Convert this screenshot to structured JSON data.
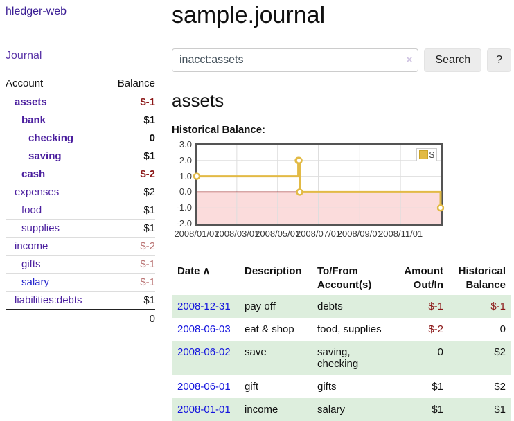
{
  "app": {
    "brand": "hledger-web"
  },
  "sidebar": {
    "journal_link": "Journal",
    "accounts": {
      "header": {
        "account": "Account",
        "balance": "Balance"
      },
      "rows": [
        {
          "name": "assets",
          "balance": "$-1"
        },
        {
          "name": "bank",
          "balance": "$1"
        },
        {
          "name": "checking",
          "balance": "0"
        },
        {
          "name": "saving",
          "balance": "$1"
        },
        {
          "name": "cash",
          "balance": "$-2"
        },
        {
          "name": "expenses",
          "balance": "$2"
        },
        {
          "name": "food",
          "balance": "$1"
        },
        {
          "name": "supplies",
          "balance": "$1"
        },
        {
          "name": "income",
          "balance": "$-2"
        },
        {
          "name": "gifts",
          "balance": "$-1"
        },
        {
          "name": "salary",
          "balance": "$-1"
        },
        {
          "name": "liabilities:debts",
          "balance": "$1"
        }
      ],
      "total": "0"
    }
  },
  "main": {
    "title": "sample.journal",
    "search": {
      "value": "inacct:assets",
      "clear_icon": "×",
      "search_button": "Search",
      "help_button": "?"
    },
    "heading": "assets",
    "chart_label": "Historical Balance:"
  },
  "chart_data": {
    "type": "line",
    "step": true,
    "title": "Historical Balance:",
    "series": [
      {
        "name": "$",
        "points": [
          {
            "date": "2008-01-01",
            "value": 1
          },
          {
            "date": "2008-06-01",
            "value": 2
          },
          {
            "date": "2008-06-02",
            "value": 2
          },
          {
            "date": "2008-06-03",
            "value": 0
          },
          {
            "date": "2008-12-31",
            "value": -1
          }
        ]
      }
    ],
    "ylim": [
      -2,
      3
    ],
    "yticks": [
      {
        "label": "3.0",
        "value": 3
      },
      {
        "label": "2.0",
        "value": 2
      },
      {
        "label": "1.0",
        "value": 1
      },
      {
        "label": "0.0",
        "value": 0
      },
      {
        "label": "-1.0",
        "value": -1
      },
      {
        "label": "-2.0",
        "value": -2
      }
    ],
    "xticks": [
      {
        "label": "2008/01/01",
        "date": "2008-01-01"
      },
      {
        "label": "2008/03/01",
        "date": "2008-03-01"
      },
      {
        "label": "2008/05/01",
        "date": "2008-05-01"
      },
      {
        "label": "2008/07/01",
        "date": "2008-07-01"
      },
      {
        "label": "2008/09/01",
        "date": "2008-09-01"
      },
      {
        "label": "2008/11/01",
        "date": "2008-11-01"
      }
    ],
    "legend": [
      {
        "label": "$",
        "color": "#e2ba45"
      }
    ],
    "legend_position": "top-right",
    "grid": true,
    "colors": {
      "line": "#e2ba45",
      "negative_fill": "#fbdcdc",
      "zero_line": "#8f1010",
      "grid": "#dedede",
      "border": "#545454"
    }
  },
  "register": {
    "headers": {
      "date": "Date",
      "sort_indicator": "∧",
      "description": "Description",
      "tofrom": "To/From Account(s)",
      "amount": "Amount Out/In",
      "balance": "Historical Balance"
    },
    "rows": [
      {
        "date": "2008-12-31",
        "description": "pay off",
        "tofrom": "debts",
        "amount": "$-1",
        "balance": "$-1"
      },
      {
        "date": "2008-06-03",
        "description": "eat & shop",
        "tofrom": "food, supplies",
        "amount": "$-2",
        "balance": "0"
      },
      {
        "date": "2008-06-02",
        "description": "save",
        "tofrom": "saving,\nchecking",
        "amount": "0",
        "balance": "$2"
      },
      {
        "date": "2008-06-01",
        "description": "gift",
        "tofrom": "gifts",
        "amount": "$1",
        "balance": "$2"
      },
      {
        "date": "2008-01-01",
        "description": "income",
        "tofrom": "salary",
        "amount": "$1",
        "balance": "$1"
      }
    ]
  }
}
